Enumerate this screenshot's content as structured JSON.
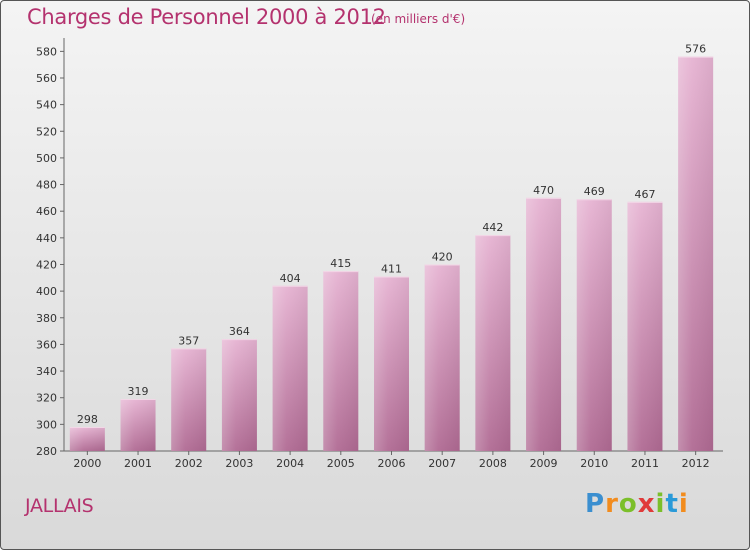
{
  "chart_data": {
    "type": "bar",
    "title": "Charges de Personnel 2000 à 2012",
    "subtitle": "(en milliers d'€)",
    "categories": [
      "2000",
      "2001",
      "2002",
      "2003",
      "2004",
      "2005",
      "2006",
      "2007",
      "2008",
      "2009",
      "2010",
      "2011",
      "2012"
    ],
    "values": [
      298,
      319,
      357,
      364,
      404,
      415,
      411,
      420,
      442,
      470,
      469,
      467,
      576
    ],
    "ylim": [
      280,
      590
    ],
    "yticks": [
      280,
      300,
      320,
      340,
      360,
      380,
      400,
      420,
      440,
      460,
      480,
      500,
      520,
      540,
      560,
      580
    ],
    "grid": false,
    "bar_color": "#d99dc0",
    "bar_color_dark": "#b0688f"
  },
  "footer": {
    "commune": "JALLAIS",
    "logo": "Proxiti"
  }
}
